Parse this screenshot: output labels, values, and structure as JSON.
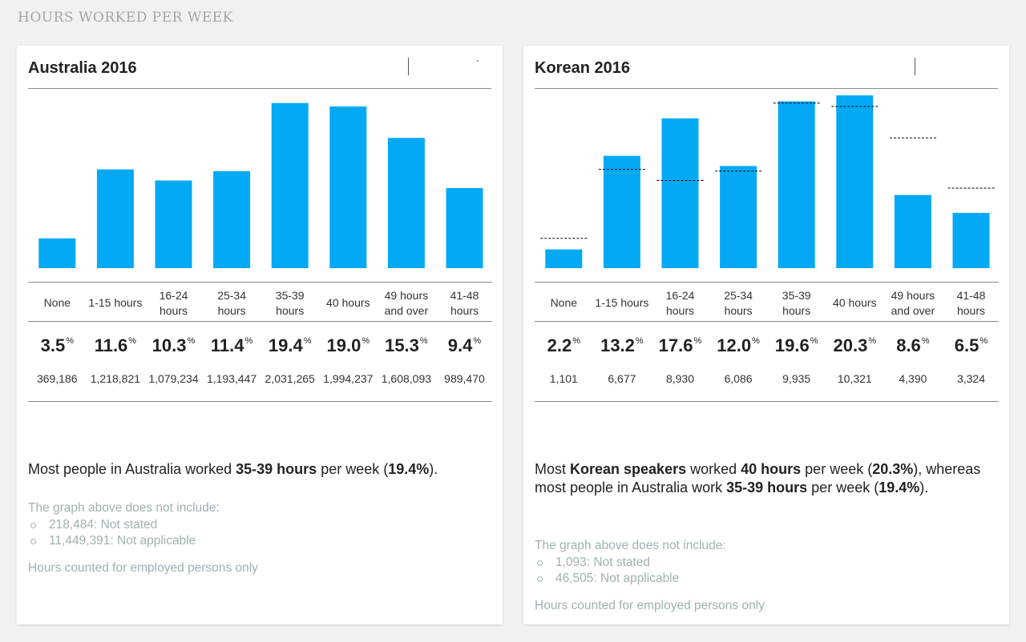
{
  "page": {
    "section_title": "HOURS WORKED PER WEEK"
  },
  "colors": {
    "bar": "#03a9f4",
    "benchmark": "#000000",
    "muted_text": "#9fb0b4"
  },
  "categories": [
    "None",
    "1-15 hours",
    "16-24 hours",
    "25-34 hours",
    "35-39 hours",
    "40 hours",
    "49 hours and over",
    "41-48 hours"
  ],
  "category_lines": [
    [
      "None"
    ],
    [
      "1-15 hours"
    ],
    [
      "16-24",
      "hours"
    ],
    [
      "25-34",
      "hours"
    ],
    [
      "35-39",
      "hours"
    ],
    [
      "40 hours"
    ],
    [
      "49 hours",
      "and over"
    ],
    [
      "41-48",
      "hours"
    ]
  ],
  "percent_symbol": "%",
  "left": {
    "title": "Australia 2016",
    "summary": {
      "p1": "Most people in Australia worked ",
      "b1": "35-39 hours",
      "p2": " per week (",
      "b2": "19.4%",
      "p3": ")."
    },
    "note": {
      "intro": "The graph above does not include:",
      "items": [
        "218,484: Not stated",
        "11,449,391: Not applicable"
      ],
      "footer": "Hours counted for employed persons only"
    }
  },
  "right": {
    "title": "Korean 2016",
    "summary": {
      "p1": "Most ",
      "b1": "Korean speakers",
      "p2": " worked ",
      "b2": "40 hours",
      "p3": " per week (",
      "b3": "20.3%",
      "p4": "), whereas most people in Australia work ",
      "b4": "35-39 hours",
      "p5": " per week (",
      "b5": "19.4%",
      "p6": ")."
    },
    "note": {
      "intro": "The graph above does not include:",
      "items": [
        "1,093: Not stated",
        "46,505: Not applicable"
      ],
      "footer": "Hours counted for employed persons only"
    }
  },
  "chart_data": [
    {
      "type": "bar",
      "title": "Australia 2016",
      "categories": [
        "None",
        "1-15 hours",
        "16-24 hours",
        "25-34 hours",
        "35-39 hours",
        "40 hours",
        "49 hours and over",
        "41-48 hours"
      ],
      "values": [
        3.5,
        11.6,
        10.3,
        11.4,
        19.4,
        19.0,
        15.3,
        9.4
      ],
      "value_labels": [
        "3.5",
        "11.6",
        "10.3",
        "11.4",
        "19.4",
        "19.0",
        "15.3",
        "9.4"
      ],
      "counts": [
        "369,186",
        "1,218,821",
        "1,079,234",
        "1,193,447",
        "2,031,265",
        "1,994,237",
        "1,608,093",
        "989,470"
      ],
      "ylim": [
        0,
        20.5
      ],
      "grid": false
    },
    {
      "type": "bar",
      "title": "Korean 2016",
      "categories": [
        "None",
        "1-15 hours",
        "16-24 hours",
        "25-34 hours",
        "35-39 hours",
        "40 hours",
        "49 hours and over",
        "41-48 hours"
      ],
      "values": [
        2.2,
        13.2,
        17.6,
        12.0,
        19.6,
        20.3,
        8.6,
        6.5
      ],
      "value_labels": [
        "2.2",
        "13.2",
        "17.6",
        "12.0",
        "19.6",
        "20.3",
        "8.6",
        "6.5"
      ],
      "counts": [
        "1,101",
        "6,677",
        "8,930",
        "6,086",
        "9,935",
        "10,321",
        "4,390",
        "3,324"
      ],
      "benchmark": [
        3.5,
        11.6,
        10.3,
        11.4,
        19.4,
        19.0,
        15.3,
        9.4
      ],
      "ylim": [
        0,
        20.5
      ],
      "grid": false
    }
  ]
}
